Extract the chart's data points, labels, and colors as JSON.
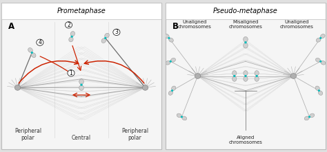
{
  "fig_width": 4.74,
  "fig_height": 2.21,
  "dpi": 100,
  "title_A": "Prometaphase",
  "title_B": "Pseudo-metaphase",
  "label_A": "A",
  "label_B": "B",
  "text_peripheral_polar_left": "Peripheral\npolar",
  "text_central": "Central",
  "text_peripheral_polar_right": "Peripheral\npolar",
  "text_unaligned_left": "Unaligned\nchromosomes",
  "text_misaligned": "Misaligned\nchromosomes",
  "text_unaligned_right": "Unaligned\nchromosomes",
  "text_aligned": "Aligned\nchromosomes",
  "red_color": "#cc2200",
  "kc_color": "#00bbbb",
  "spindle_light": "#c8c8c8",
  "spindle_dark": "#888888",
  "chr_fill": "#d0d0d0",
  "chr_edge": "#999999",
  "pole_color": "#b0b0b0",
  "cell_fill": "#ebebeb",
  "cell_edge": "#bbbbbb",
  "panel_fill": "#f5f5f5",
  "title_fill": "#ffffff",
  "font_title": 7.0,
  "font_label": 8.5,
  "font_zone": 5.5,
  "font_num": 5.5
}
